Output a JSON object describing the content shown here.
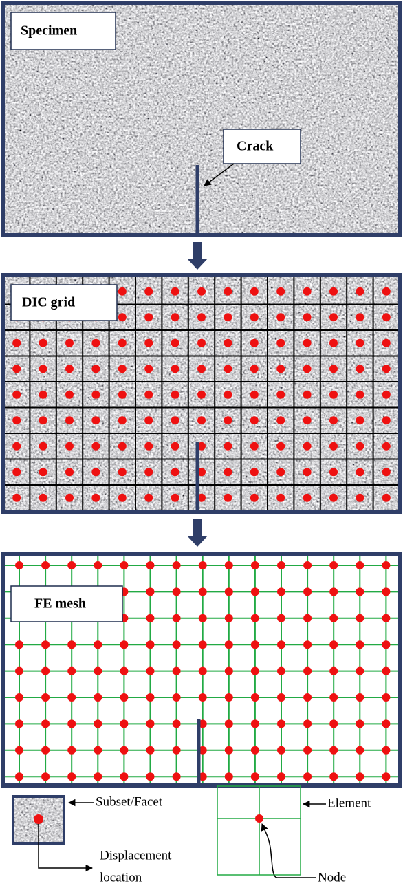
{
  "specimen": {
    "label": "Specimen",
    "crack_label": "Crack"
  },
  "dic": {
    "label": "DIC grid"
  },
  "fe": {
    "label": "FE mesh"
  },
  "legend": {
    "subset": "Subset/Facet",
    "displacement": [
      "Displacement",
      "location"
    ],
    "element": "Element",
    "node": "Node"
  }
}
